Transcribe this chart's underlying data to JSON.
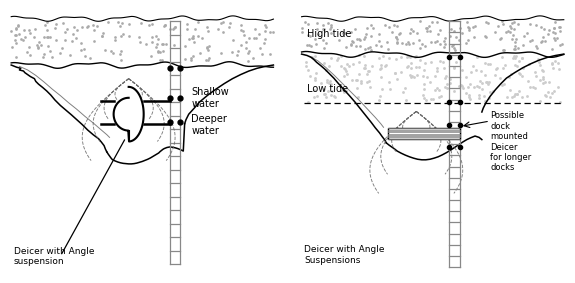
{
  "bg_color": "#ffffff",
  "left_panel": {
    "shallow_water_label": "Shallow\nwater",
    "deeper_water_label": "Deeper\nwater",
    "bottom_label": "Deicer with Angle\nsuspension"
  },
  "right_panel": {
    "high_tide_label": "High tide",
    "low_tide_label": "Low tide",
    "side_label": "Possible\ndock\nmounted\nDeicer\nfor longer\ndocks",
    "bottom_label": "Deicer with Angle\nSuspensions"
  },
  "text_color": "#000000",
  "line_color": "#000000",
  "dash_color": "#555555",
  "ladder_color": "#888888",
  "ground_dot_color": "#aaaaaa"
}
